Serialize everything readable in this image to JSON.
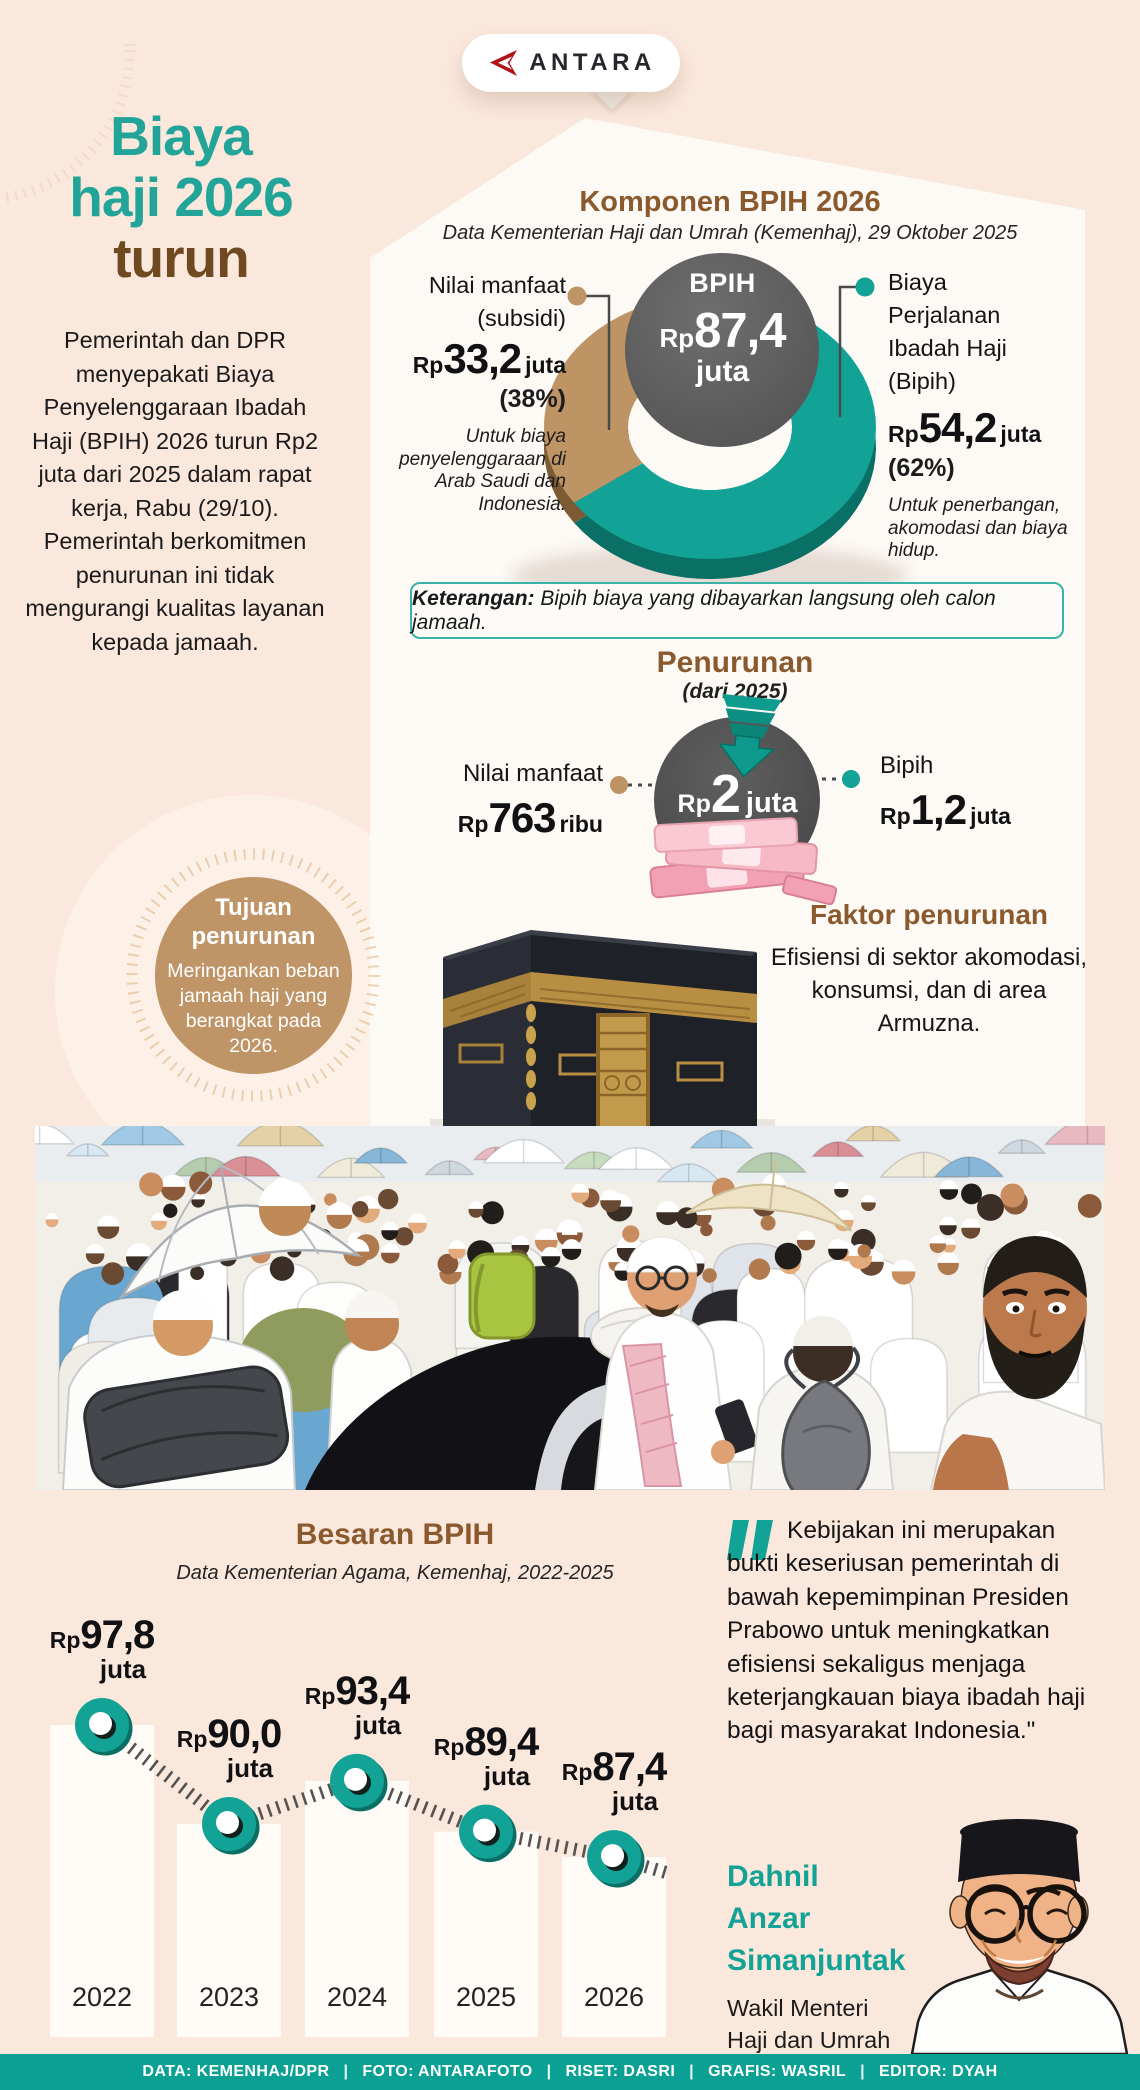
{
  "brand": {
    "name": "ANTARA"
  },
  "header": {
    "title_teal_1": "Biaya",
    "title_teal_2": "haji 2026",
    "title_brown": "turun",
    "intro": "Pemerintah dan DPR menyepakati Biaya Penyelenggaraan Ibadah Haji (BPIH) 2026 turun Rp2 juta dari 2025 dalam rapat kerja, Rabu (29/10). Pemerintah berkomitmen penurunan ini tidak mengurangi kualitas layanan kepada jamaah."
  },
  "komponen": {
    "title": "Komponen BPIH 2026",
    "source": "Data Kementerian Haji dan Umrah (Kemenhaj), 29 Oktober 2025",
    "center": {
      "label": "BPIH",
      "rp": "Rp",
      "value": "87,4",
      "unit": "juta"
    },
    "left": {
      "line1": "Nilai manfaat",
      "line2": "(subsidi)",
      "rp": "Rp",
      "value": "33,2",
      "unit": "juta",
      "pct": "(38%)",
      "note": "Untuk biaya penyelenggaraan di Arab Saudi dan Indonesia."
    },
    "right": {
      "line1": "Biaya",
      "line2": "Perjalanan",
      "line3": "Ibadah Haji",
      "line4": "(Bipih)",
      "rp": "Rp",
      "value": "54,2",
      "unit": "juta",
      "pct": "(62%)",
      "note": "Untuk penerbangan, akomodasi dan biaya hidup."
    },
    "keterangan_label": "Keterangan:",
    "keterangan_text": " Bipih biaya yang dibayarkan langsung oleh calon jamaah."
  },
  "penurunan": {
    "title": "Penurunan",
    "subtitle": "(dari 2025)",
    "center": {
      "rp": "Rp",
      "value": "2",
      "unit": "juta"
    },
    "left": {
      "label": "Nilai manfaat",
      "rp": "Rp",
      "value": "763",
      "unit": "ribu"
    },
    "right": {
      "label": "Bipih",
      "rp": "Rp",
      "value": "1,2",
      "unit": "juta"
    }
  },
  "tujuan": {
    "title_line1": "Tujuan",
    "title_line2": "penurunan",
    "body": "Meringankan beban jamaah haji yang berangkat pada 2026."
  },
  "faktor": {
    "title": "Faktor penurunan",
    "body": "Efisiensi di sektor akomodasi, konsumsi, dan di area Armuzna."
  },
  "besaran": {
    "title": "Besaran BPIH",
    "source": "Data Kementerian Agama, Kemenhaj, 2022-2025"
  },
  "quote": {
    "text": "Kebijakan ini merupakan bukti keseriusan pemerintah di bawah kepemimpinan Presiden Prabowo untuk meningkatkan efisiensi sekaligus menjaga keterjangkauan biaya ibadah haji bagi masyarakat Indonesia.\"",
    "name_line1": "Dahnil",
    "name_line2": "Anzar",
    "name_line3": "Simanjuntak",
    "role_line1": "Wakil Menteri",
    "role_line2": "Haji dan Umrah"
  },
  "footer": {
    "items": [
      "DATA: KEMENHAJ/DPR",
      "FOTO: ANTARAFOTO",
      "RISET: DASRI",
      "GRAFIS: WASRIL",
      "EDITOR: DYAH"
    ],
    "separator": "|"
  },
  "colors": {
    "teal": "#12a296",
    "teal_dark": "#0a6f64",
    "brown": "#8a5a2e",
    "tan": "#bf9465",
    "tan_dark": "#7c5a33",
    "gray_circle": "#5e5e5e",
    "background": "#fbe8dd",
    "panel": "#fdfaf5",
    "footer_bar": "#0aa093",
    "money_pink": "#f5a9bb"
  },
  "chart_data": [
    {
      "type": "pie",
      "subtype": "3d-donut",
      "title": "Komponen BPIH 2026",
      "center_label": "BPIH",
      "center_value": "Rp87,4 juta",
      "slices": [
        {
          "label": "Biaya Perjalanan Ibadah Haji (Bipih)",
          "value_juta": 54.2,
          "pct": 62,
          "color": "#12a296",
          "note": "Untuk penerbangan, akomodasi dan biaya hidup."
        },
        {
          "label": "Nilai manfaat (subsidi)",
          "value_juta": 33.2,
          "pct": 38,
          "color": "#bf9465",
          "note": "Untuk biaya penyelenggaraan di Arab Saudi dan Indonesia."
        }
      ]
    },
    {
      "type": "line",
      "title": "Besaran BPIH",
      "source": "Data Kementerian Agama, Kemenhaj, 2022-2025",
      "unit": "juta rupiah",
      "categories": [
        "2022",
        "2023",
        "2024",
        "2025",
        "2026"
      ],
      "values": [
        97.8,
        90.0,
        93.4,
        89.4,
        87.4
      ],
      "value_labels": [
        "97,8",
        "90,0",
        "93,4",
        "89,4",
        "87,4"
      ],
      "currency_prefix": "Rp",
      "value_unit": "juta",
      "marker_color": "#12a296",
      "connector_style": "hatched",
      "columns": "white",
      "ylim": [
        80,
        100
      ],
      "legend": "none",
      "grid": false
    }
  ]
}
